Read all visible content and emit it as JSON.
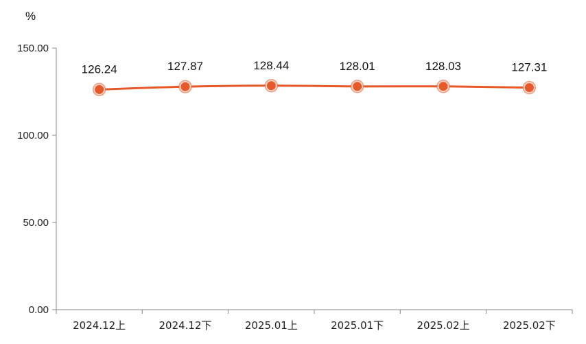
{
  "chart_data": {
    "type": "line",
    "title": "",
    "ylabel": "%",
    "xlabel": "",
    "ylim": [
      0,
      150
    ],
    "yticks": [
      "0.00",
      "50.00",
      "100.00",
      "150.00"
    ],
    "ytick_values": [
      0,
      50,
      100,
      150
    ],
    "categories": [
      "2024.12上",
      "2024.12下",
      "2025.01上",
      "2025.01下",
      "2025.02上",
      "2025.02下"
    ],
    "series": [
      {
        "values": [
          126.24,
          127.87,
          128.44,
          128.01,
          128.03,
          127.31
        ],
        "labels": [
          "126.24",
          "127.87",
          "128.44",
          "128.01",
          "128.03",
          "127.31"
        ],
        "color": "#e8592a"
      }
    ],
    "grid": false,
    "legend": "none"
  }
}
